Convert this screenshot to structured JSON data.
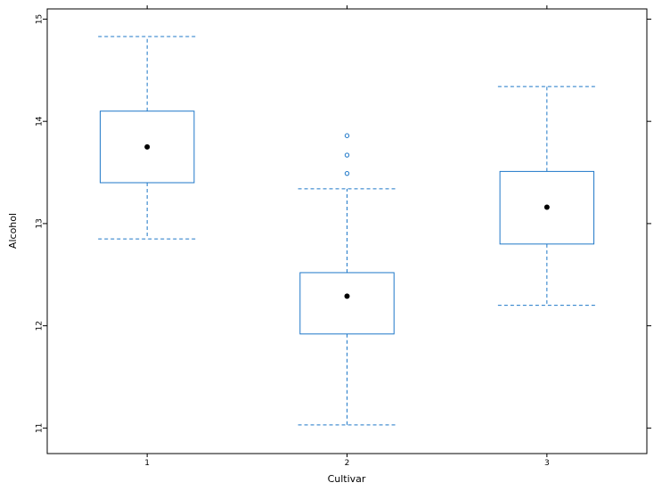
{
  "chart_data": {
    "type": "box",
    "xlabel": "Cultivar",
    "ylabel": "Alcohol",
    "ylim": [
      10.75,
      15.1
    ],
    "y_ticks": [
      11,
      12,
      13,
      14,
      15
    ],
    "categories": [
      "1",
      "2",
      "3"
    ],
    "box_color": "#1f78c8",
    "median_color": "#000000",
    "boxes": [
      {
        "category": "1",
        "whisker_low": 12.85,
        "q1": 13.4,
        "median": 13.75,
        "q3": 14.1,
        "whisker_high": 14.83,
        "outliers": []
      },
      {
        "category": "2",
        "whisker_low": 11.03,
        "q1": 11.92,
        "median": 12.29,
        "q3": 12.52,
        "whisker_high": 13.34,
        "outliers": [
          13.49,
          13.67,
          13.86
        ]
      },
      {
        "category": "3",
        "whisker_low": 12.2,
        "q1": 12.8,
        "median": 13.16,
        "q3": 13.51,
        "whisker_high": 14.34,
        "outliers": []
      }
    ]
  }
}
